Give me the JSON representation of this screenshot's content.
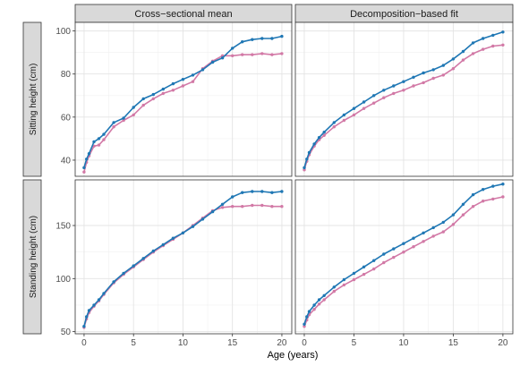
{
  "chart_data": {
    "type": "line",
    "xlabel": "Age (years)",
    "columns": [
      "Cross−sectional mean",
      "Decomposition−based fit"
    ],
    "rows": [
      "Sitting height (cm)",
      "Standing height (cm)"
    ],
    "x_ticks": [
      0,
      5,
      10,
      15,
      20
    ],
    "xlim": [
      -0.9,
      21.0
    ],
    "grid": true,
    "panels": [
      {
        "column": 0,
        "row": 0,
        "ylim": [
          32.5,
          104
        ],
        "y_ticks": [
          40,
          60,
          80,
          100
        ],
        "series": [
          {
            "color": "#1f77b4",
            "x": [
              0,
              0.25,
              0.5,
              1,
              1.5,
              2,
              3,
              4,
              5,
              6,
              7,
              8,
              9,
              10,
              11,
              12,
              13,
              14,
              15,
              16,
              17,
              18,
              19,
              20
            ],
            "y": [
              36.5,
              40.5,
              43,
              48.5,
              50,
              52,
              57.5,
              59.5,
              64.5,
              68.5,
              70.5,
              73,
              75.5,
              77.5,
              79.5,
              82,
              85.5,
              87.5,
              92,
              95,
              96,
              96.5,
              96.5,
              97.5
            ]
          },
          {
            "color": "#d279a6",
            "x": [
              0,
              0.25,
              0.5,
              1,
              1.5,
              2,
              3,
              4,
              5,
              6,
              7,
              8,
              9,
              10,
              11,
              12,
              13,
              14,
              15,
              16,
              17,
              18,
              19,
              20
            ],
            "y": [
              34.5,
              39,
              42,
              46.5,
              47,
              49.5,
              55.5,
              58.5,
              61,
              65.5,
              68.5,
              71,
              72.5,
              74.5,
              76.5,
              82.5,
              86,
              88.5,
              88.5,
              89,
              89,
              89.5,
              89,
              89.5
            ]
          }
        ]
      },
      {
        "column": 1,
        "row": 0,
        "ylim": [
          32.5,
          104
        ],
        "y_ticks": [
          40,
          60,
          80,
          100
        ],
        "series": [
          {
            "color": "#1f77b4",
            "x": [
              0,
              0.25,
              0.5,
              1,
              1.5,
              2,
              3,
              4,
              5,
              6,
              7,
              8,
              9,
              10,
              11,
              12,
              13,
              14,
              15,
              16,
              17,
              18,
              19,
              20
            ],
            "y": [
              36.5,
              40.5,
              43.5,
              47.5,
              50.5,
              53,
              57.5,
              61,
              64,
              67,
              70,
              72.5,
              74.5,
              76.5,
              78.5,
              80.5,
              82,
              84,
              87,
              90.5,
              94.5,
              96.5,
              98,
              99.5
            ]
          },
          {
            "color": "#d279a6",
            "x": [
              0,
              0.25,
              0.5,
              1,
              1.5,
              2,
              3,
              4,
              5,
              6,
              7,
              8,
              9,
              10,
              11,
              12,
              13,
              14,
              15,
              16,
              17,
              18,
              19,
              20
            ],
            "y": [
              35.5,
              39.5,
              42.5,
              46.5,
              49.5,
              51.5,
              55.5,
              58.5,
              61,
              64,
              66.5,
              69,
              71,
              72.5,
              74.5,
              76,
              78,
              79.5,
              82.5,
              86.5,
              89.5,
              91.5,
              93,
              93.5
            ]
          }
        ]
      },
      {
        "column": 0,
        "row": 1,
        "ylim": [
          48,
          193
        ],
        "y_ticks": [
          50,
          100,
          150
        ],
        "series": [
          {
            "color": "#1f77b4",
            "x": [
              0,
              0.25,
              0.5,
              1,
              1.5,
              2,
              3,
              4,
              5,
              6,
              7,
              8,
              9,
              10,
              11,
              12,
              13,
              14,
              15,
              16,
              17,
              18,
              19,
              20
            ],
            "y": [
              55,
              64,
              70,
              75,
              80,
              86,
              97,
              105,
              112,
              119,
              126,
              132,
              138,
              143,
              149,
              156,
              163,
              170,
              177,
              181,
              182,
              182,
              181,
              182
            ]
          },
          {
            "color": "#d279a6",
            "x": [
              0,
              0.25,
              0.5,
              1,
              1.5,
              2,
              3,
              4,
              5,
              6,
              7,
              8,
              9,
              10,
              11,
              12,
              13,
              14,
              15,
              16,
              17,
              18,
              19,
              20
            ],
            "y": [
              54,
              62,
              68,
              74,
              79,
              85,
              96,
              104,
              111,
              118,
              125,
              131,
              137,
              143,
              150,
              157,
              164,
              167,
              168,
              168,
              169,
              169,
              168,
              168
            ]
          }
        ]
      },
      {
        "column": 1,
        "row": 1,
        "ylim": [
          48,
          193
        ],
        "y_ticks": [
          50,
          100,
          150
        ],
        "series": [
          {
            "color": "#1f77b4",
            "x": [
              0,
              0.25,
              0.5,
              1,
              1.5,
              2,
              3,
              4,
              5,
              6,
              7,
              8,
              9,
              10,
              11,
              12,
              13,
              14,
              15,
              16,
              17,
              18,
              19,
              20
            ],
            "y": [
              57,
              64,
              69,
              75,
              80,
              84,
              92,
              99,
              105,
              111,
              117,
              123,
              128,
              133,
              138,
              143,
              148,
              153,
              160,
              170,
              179,
              184,
              187,
              189
            ]
          },
          {
            "color": "#d279a6",
            "x": [
              0,
              0.25,
              0.5,
              1,
              1.5,
              2,
              3,
              4,
              5,
              6,
              7,
              8,
              9,
              10,
              11,
              12,
              13,
              14,
              15,
              16,
              17,
              18,
              19,
              20
            ],
            "y": [
              55,
              61,
              66,
              71,
              76,
              80,
              88,
              94,
              99,
              104,
              109,
              115,
              120,
              125,
              130,
              135,
              140,
              144,
              151,
              160,
              168,
              173,
              175,
              177
            ]
          }
        ]
      }
    ]
  }
}
